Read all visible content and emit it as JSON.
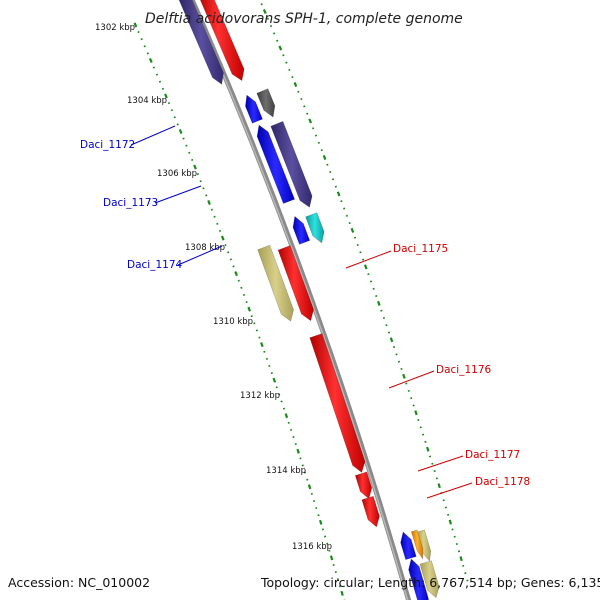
{
  "title": "Delftia acidovorans SPH-1, complete genome",
  "accession": "Accession: NC_010002",
  "summary": "Topology: circular; Length: 6,767,514 bp; Genes: 6,135",
  "ticks": [
    "1302 kbp",
    "1304 kbp",
    "1306 kbp",
    "1308 kbp",
    "1310 kbp",
    "1312 kbp",
    "1314 kbp",
    "1316 kbp"
  ],
  "genes": [
    {
      "label": "Daci_1172",
      "strand": "minus",
      "color": "#0000cc"
    },
    {
      "label": "Daci_1173",
      "strand": "minus",
      "color": "#0000cc"
    },
    {
      "label": "Daci_1174",
      "strand": "minus",
      "color": "#0000cc"
    },
    {
      "label": "Daci_1175",
      "strand": "plus",
      "color": "#cc0000"
    },
    {
      "label": "Daci_1176",
      "strand": "plus",
      "color": "#cc0000"
    },
    {
      "label": "Daci_1177",
      "strand": "plus",
      "color": "#cc0000"
    },
    {
      "label": "Daci_1178",
      "strand": "plus",
      "color": "#cc0000"
    }
  ],
  "colors": {
    "backbone": "#8a8a8a",
    "tick_dots": "#1a8a1a",
    "red": "#ff1a1a",
    "navy": "#4a3f8c",
    "blue": "#0a0aff",
    "khaki": "#c8c07a",
    "gray": "#5a5a5a",
    "cyan": "#12c8c8",
    "orange": "#ff9900"
  }
}
